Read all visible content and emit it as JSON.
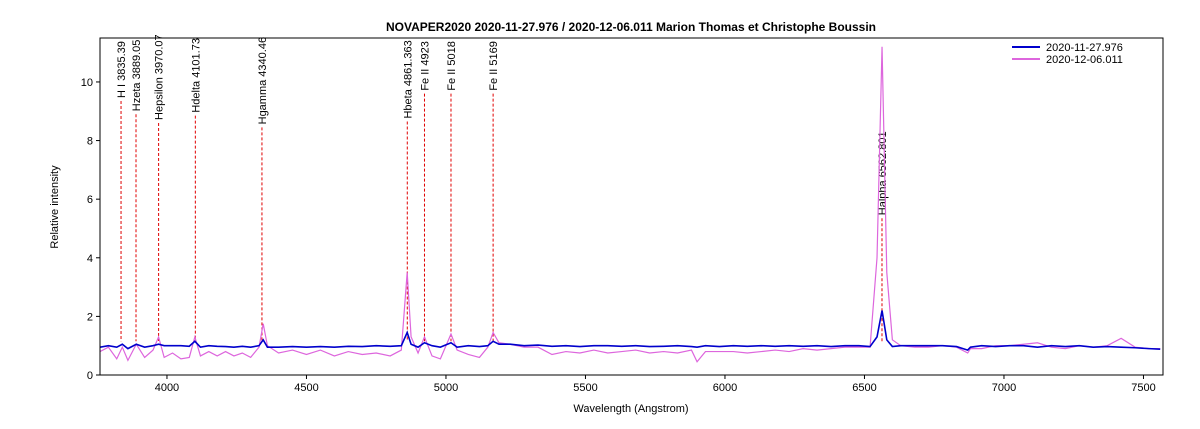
{
  "chart_data": {
    "type": "line",
    "title": "NOVAPER2020   2020-11-27.976 / 2020-12-06.011   Marion Thomas et Christophe Boussin",
    "x_label": "Wavelength (Angstrom)",
    "y_label": "Relative intensity",
    "xlim": [
      3760,
      7570
    ],
    "ylim": [
      0,
      11.5
    ],
    "xticks": [
      4000,
      4500,
      5000,
      5500,
      6000,
      6500,
      7000,
      7500
    ],
    "yticks": [
      0,
      2,
      4,
      6,
      8,
      10
    ],
    "grid": false,
    "legend": "top-right",
    "x": [
      3760,
      3790,
      3820,
      3840,
      3860,
      3890,
      3920,
      3950,
      3970,
      3990,
      4020,
      4050,
      4080,
      4100,
      4120,
      4150,
      4180,
      4210,
      4240,
      4270,
      4300,
      4330,
      4345,
      4360,
      4400,
      4450,
      4500,
      4550,
      4600,
      4650,
      4700,
      4750,
      4800,
      4840,
      4861,
      4875,
      4900,
      4923,
      4950,
      4980,
      5018,
      5040,
      5080,
      5120,
      5150,
      5169,
      5190,
      5230,
      5280,
      5330,
      5380,
      5430,
      5480,
      5530,
      5580,
      5630,
      5680,
      5730,
      5780,
      5830,
      5880,
      5900,
      5930,
      5980,
      6030,
      6080,
      6130,
      6180,
      6230,
      6280,
      6330,
      6380,
      6430,
      6480,
      6520,
      6545,
      6563,
      6580,
      6600,
      6630,
      6680,
      6730,
      6780,
      6830,
      6870,
      6880,
      6920,
      6970,
      7020,
      7070,
      7120,
      7170,
      7220,
      7270,
      7320,
      7370,
      7420,
      7470,
      7520,
      7560
    ],
    "series": [
      {
        "name": "2020-11-27.976",
        "color": "#0000cc",
        "values": [
          0.95,
          1.0,
          0.95,
          1.05,
          0.9,
          1.05,
          0.95,
          1.0,
          1.05,
          1.0,
          1.0,
          1.0,
          0.98,
          1.15,
          0.95,
          1.0,
          0.98,
          0.97,
          0.95,
          0.98,
          0.95,
          1.0,
          1.2,
          0.95,
          0.95,
          0.97,
          0.95,
          0.97,
          0.95,
          0.98,
          0.97,
          1.0,
          0.98,
          1.0,
          1.45,
          1.05,
          0.95,
          1.1,
          1.0,
          0.95,
          1.1,
          0.95,
          1.0,
          0.97,
          1.0,
          1.15,
          1.05,
          1.05,
          1.0,
          1.02,
          0.98,
          1.0,
          0.97,
          1.0,
          1.0,
          0.98,
          1.0,
          0.97,
          0.98,
          1.0,
          0.97,
          0.95,
          1.0,
          0.97,
          1.0,
          0.98,
          1.0,
          0.98,
          1.0,
          0.98,
          1.0,
          0.97,
          1.0,
          1.0,
          0.97,
          1.3,
          2.2,
          1.2,
          0.97,
          1.0,
          1.0,
          1.0,
          1.0,
          0.97,
          0.85,
          0.95,
          1.0,
          0.97,
          1.0,
          1.0,
          0.95,
          1.0,
          0.97,
          1.0,
          0.95,
          0.97,
          0.95,
          0.93,
          0.9,
          0.88
        ]
      },
      {
        "name": "2020-12-06.011",
        "color": "#dd66dd",
        "values": [
          0.8,
          0.95,
          0.55,
          0.95,
          0.5,
          1.05,
          0.6,
          0.85,
          1.3,
          0.6,
          0.75,
          0.55,
          0.6,
          1.3,
          0.65,
          0.8,
          0.65,
          0.8,
          0.65,
          0.75,
          0.6,
          0.95,
          1.75,
          1.0,
          0.75,
          0.85,
          0.7,
          0.85,
          0.65,
          0.8,
          0.7,
          0.75,
          0.65,
          0.85,
          3.5,
          1.3,
          0.75,
          1.3,
          0.65,
          0.55,
          1.4,
          0.85,
          0.7,
          0.6,
          0.95,
          1.45,
          1.1,
          1.05,
          0.95,
          0.95,
          0.7,
          0.8,
          0.75,
          0.85,
          0.75,
          0.8,
          0.85,
          0.75,
          0.8,
          0.75,
          0.85,
          0.45,
          0.8,
          0.8,
          0.8,
          0.75,
          0.8,
          0.85,
          0.8,
          0.9,
          0.85,
          0.9,
          0.95,
          0.95,
          0.95,
          4.0,
          11.2,
          3.5,
          1.2,
          1.0,
          0.95,
          0.95,
          1.0,
          0.95,
          0.75,
          0.9,
          0.9,
          1.0,
          1.0,
          1.05,
          1.1,
          0.95,
          0.9,
          1.0,
          0.95,
          1.0,
          1.25,
          0.95,
          0.9,
          0.9
        ]
      }
    ],
    "annotations": [
      {
        "label": "H I 3835.39",
        "x": 3835.39,
        "y": 9.35
      },
      {
        "label": "Hzeta 3889.05",
        "x": 3889.05,
        "y": 8.9
      },
      {
        "label": "Hepsilon 3970.07",
        "x": 3970.07,
        "y": 8.6
      },
      {
        "label": "Hdelta 4101.73",
        "x": 4101.73,
        "y": 8.85
      },
      {
        "label": "Hgamma 4340.46",
        "x": 4340.46,
        "y": 8.45
      },
      {
        "label": "Hbeta 4861.363",
        "x": 4861.363,
        "y": 8.65
      },
      {
        "label": "Fe II 4923",
        "x": 4923,
        "y": 9.6
      },
      {
        "label": "Fe II 5018",
        "x": 5018,
        "y": 9.6
      },
      {
        "label": "Fe II 5169",
        "x": 5169,
        "y": 9.6
      },
      {
        "label": "Halpha 6562.801",
        "x": 6562.801,
        "y": 5.35
      }
    ]
  }
}
